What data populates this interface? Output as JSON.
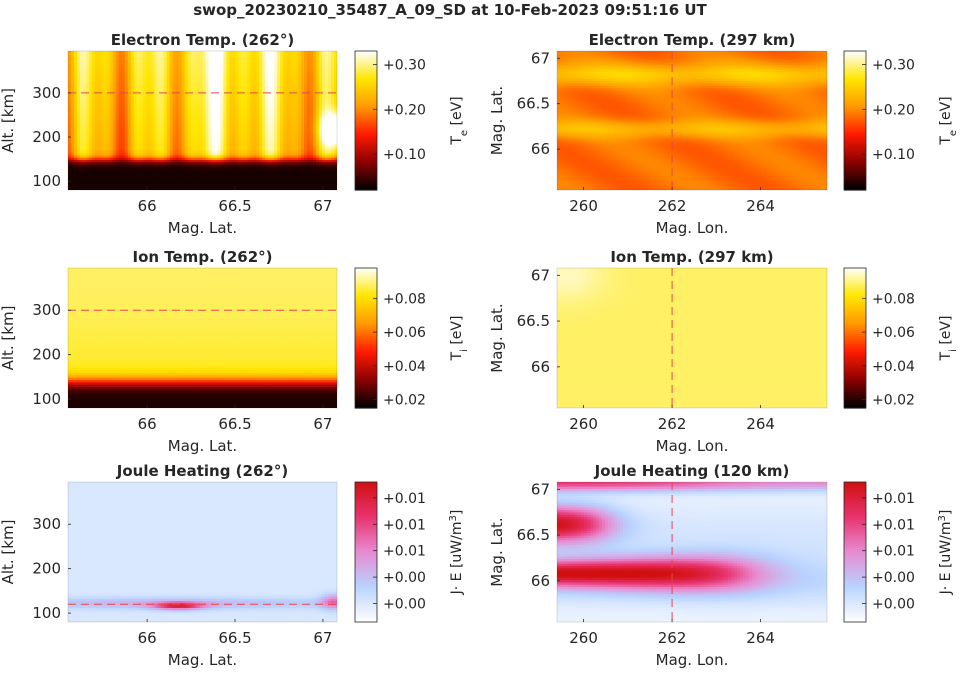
{
  "title": "swop_20230210_35487_A_09_SD at 10-Feb-2023 09:51:16 UT",
  "colors": {
    "hot_stops": [
      "#000000",
      "#8c0000",
      "#ff1a00",
      "#ff9900",
      "#ffe600",
      "#ffffff"
    ],
    "joule_stops": [
      "#ffffff",
      "#b9d3ff",
      "#e88ad0",
      "#e8336e",
      "#d10f0f"
    ],
    "marker_line": "#e5484d"
  },
  "chart_data": [
    {
      "id": "te_alt",
      "type": "heatmap",
      "title": "Electron Temp. (262°)",
      "xlabel": "Mag. Lat.",
      "ylabel": "Alt. [km]",
      "xlim": [
        65.55,
        67.08
      ],
      "ylim": [
        80,
        395
      ],
      "xticks": [
        66,
        66.5,
        67
      ],
      "xtick_labels": [
        "66",
        "66.5",
        "67"
      ],
      "yticks": [
        100,
        200,
        300
      ],
      "ytick_labels": [
        "100",
        "200",
        "300"
      ],
      "marker": {
        "axis": "y",
        "value": 300
      },
      "colorbar": {
        "label": "T",
        "label_sub": "e",
        "label_unit": "[eV]",
        "colormap": "hot",
        "ticks": [
          0.1,
          0.2,
          0.3
        ],
        "tick_labels": [
          "+0.10",
          "+0.20",
          "+0.30"
        ],
        "range": [
          0.02,
          0.33
        ]
      }
    },
    {
      "id": "te_map",
      "type": "heatmap",
      "title": "Electron Temp. (297 km)",
      "xlabel": "Mag. Lon.",
      "ylabel": "Mag. Lat.",
      "xlim": [
        259.4,
        265.5
      ],
      "ylim": [
        65.55,
        67.08
      ],
      "xticks": [
        260,
        262,
        264
      ],
      "xtick_labels": [
        "260",
        "262",
        "264"
      ],
      "yticks": [
        66,
        66.5,
        67
      ],
      "ytick_labels": [
        "66",
        "66.5",
        "67"
      ],
      "marker": {
        "axis": "x",
        "value": 262
      },
      "colorbar": {
        "label": "T",
        "label_sub": "e",
        "label_unit": "[eV]",
        "colormap": "hot",
        "ticks": [
          0.1,
          0.2,
          0.3
        ],
        "tick_labels": [
          "+0.10",
          "+0.20",
          "+0.30"
        ],
        "range": [
          0.02,
          0.33
        ]
      }
    },
    {
      "id": "ti_alt",
      "type": "heatmap",
      "title": "Ion Temp. (262°)",
      "xlabel": "Mag. Lat.",
      "ylabel": "Alt. [km]",
      "xlim": [
        65.55,
        67.08
      ],
      "ylim": [
        80,
        395
      ],
      "xticks": [
        66,
        66.5,
        67
      ],
      "xtick_labels": [
        "66",
        "66.5",
        "67"
      ],
      "yticks": [
        100,
        200,
        300
      ],
      "ytick_labels": [
        "100",
        "200",
        "300"
      ],
      "marker": {
        "axis": "y",
        "value": 300
      },
      "colorbar": {
        "label": "T",
        "label_sub": "i",
        "label_unit": "[eV]",
        "colormap": "hot",
        "ticks": [
          0.02,
          0.04,
          0.06,
          0.08
        ],
        "tick_labels": [
          "+0.02",
          "+0.04",
          "+0.06",
          "+0.08"
        ],
        "range": [
          0.015,
          0.098
        ]
      }
    },
    {
      "id": "ti_map",
      "type": "heatmap",
      "title": "Ion Temp. (297 km)",
      "xlabel": "Mag. Lon.",
      "ylabel": "Mag. Lat.",
      "xlim": [
        259.4,
        265.5
      ],
      "ylim": [
        65.55,
        67.08
      ],
      "xticks": [
        260,
        262,
        264
      ],
      "xtick_labels": [
        "260",
        "262",
        "264"
      ],
      "yticks": [
        66,
        66.5,
        67
      ],
      "ytick_labels": [
        "66",
        "66.5",
        "67"
      ],
      "marker": {
        "axis": "x",
        "value": 262
      },
      "colorbar": {
        "label": "T",
        "label_sub": "i",
        "label_unit": "[eV]",
        "colormap": "hot",
        "ticks": [
          0.02,
          0.04,
          0.06,
          0.08
        ],
        "tick_labels": [
          "+0.02",
          "+0.04",
          "+0.06",
          "+0.08"
        ],
        "range": [
          0.015,
          0.098
        ]
      }
    },
    {
      "id": "jh_alt",
      "type": "heatmap",
      "title": "Joule Heating (262°)",
      "xlabel": "Mag. Lat.",
      "ylabel": "Alt. [km]",
      "xlim": [
        65.55,
        67.08
      ],
      "ylim": [
        80,
        395
      ],
      "xticks": [
        66,
        66.5,
        67
      ],
      "xtick_labels": [
        "66",
        "66.5",
        "67"
      ],
      "yticks": [
        100,
        200,
        300
      ],
      "ytick_labels": [
        "100",
        "200",
        "300"
      ],
      "marker": {
        "axis": "y",
        "value": 120
      },
      "colorbar": {
        "label": "J· E [uW/m",
        "label_sup": "3",
        "label_unit": "]",
        "colormap": "joule",
        "ticks": [
          0,
          1,
          2,
          3,
          4
        ],
        "tick_labels": [
          "+0.00",
          "+0.00",
          "+0.01",
          "+0.01",
          "+0.01"
        ],
        "range": [
          -0.7,
          4.6
        ]
      }
    },
    {
      "id": "jh_map",
      "type": "heatmap",
      "title": "Joule Heating (120 km)",
      "xlabel": "Mag. Lon.",
      "ylabel": "Mag. Lat.",
      "xlim": [
        259.4,
        265.5
      ],
      "ylim": [
        65.55,
        67.08
      ],
      "xticks": [
        260,
        262,
        264
      ],
      "xtick_labels": [
        "260",
        "262",
        "264"
      ],
      "yticks": [
        66,
        66.5,
        67
      ],
      "ytick_labels": [
        "66",
        "66.5",
        "67"
      ],
      "marker": {
        "axis": "x",
        "value": 262
      },
      "colorbar": {
        "label": "J· E [uW/m",
        "label_sup": "3",
        "label_unit": "]",
        "colormap": "joule",
        "ticks": [
          0,
          1,
          2,
          3,
          4
        ],
        "tick_labels": [
          "+0.00",
          "+0.00",
          "+0.01",
          "+0.01",
          "+0.01"
        ],
        "range": [
          -0.7,
          4.6
        ]
      }
    }
  ]
}
